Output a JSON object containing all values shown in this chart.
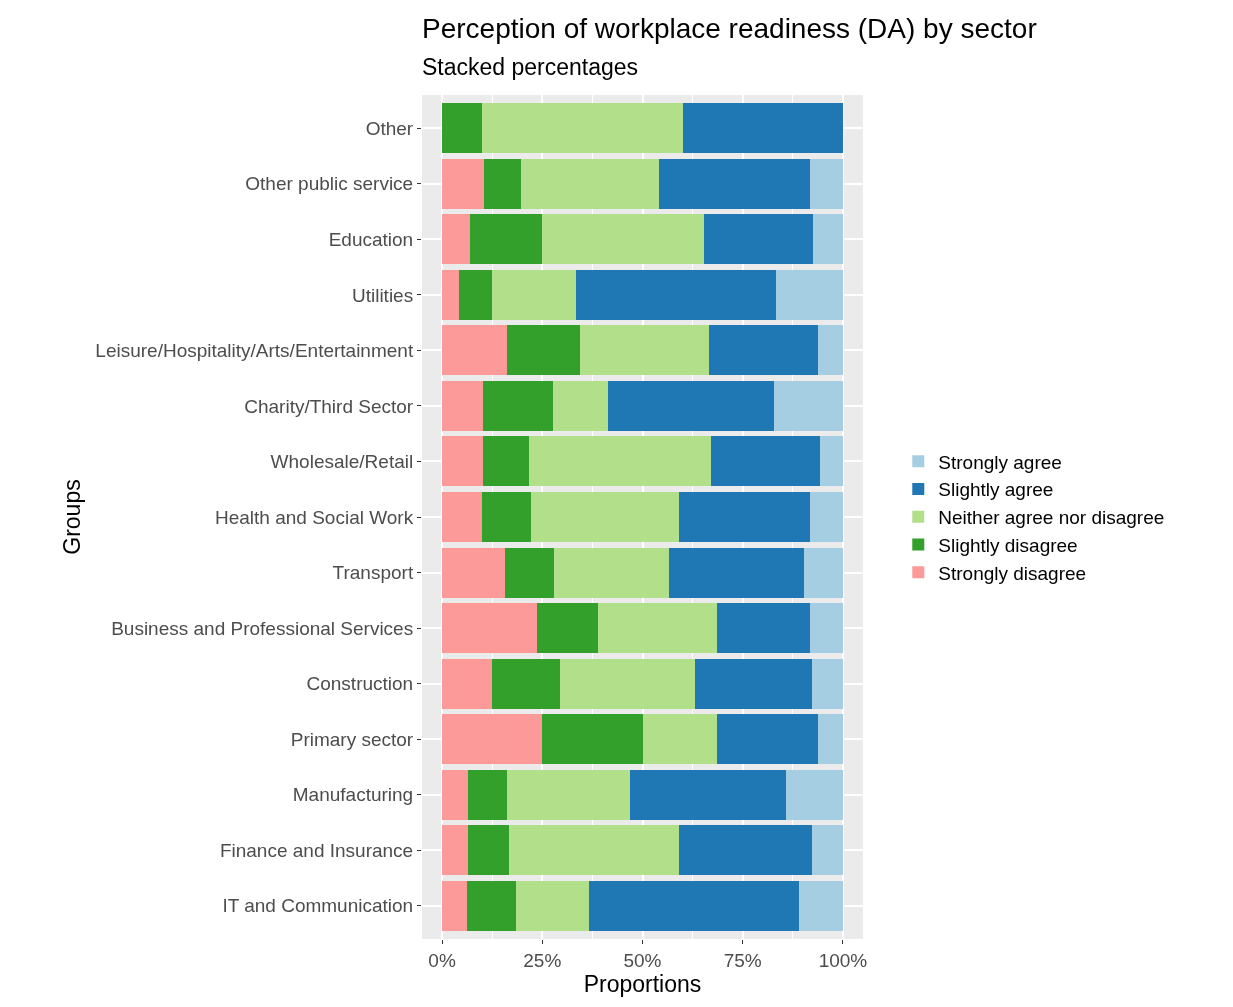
{
  "chart_data": {
    "type": "bar",
    "orientation": "horizontal",
    "stacked": true,
    "title": "Perception of workplace readiness (DA) by sector",
    "subtitle": "Stacked percentages",
    "xlabel": "Proportions",
    "ylabel": "Groups",
    "legend": "right",
    "grid": true,
    "categories": [
      "Other",
      "Other public service",
      "Education",
      "Utilities",
      "Leisure/Hospitality/Arts/Entertainment",
      "Charity/Third Sector",
      "Wholesale/Retail",
      "Health and Social Work",
      "Transport",
      "Business and Professional Services",
      "Construction",
      "Primary sector",
      "Manufacturing",
      "Finance and Insurance",
      "IT and Communication"
    ],
    "xlim": [
      -5,
      105
    ],
    "xticks": [
      {
        "value": 0,
        "label": "0%"
      },
      {
        "value": 25,
        "label": "25%"
      },
      {
        "value": 50,
        "label": "50%"
      },
      {
        "value": 75,
        "label": "75%"
      },
      {
        "value": 100,
        "label": "100%"
      }
    ],
    "series": [
      {
        "name": "Strongly disagree",
        "color": "#fb9a99",
        "values": [
          0,
          10.5,
          7.0,
          4.2,
          16.3,
          10.3,
          10.3,
          9.9,
          15.8,
          23.7,
          12.4,
          25.0,
          6.4,
          6.4,
          6.1
        ]
      },
      {
        "name": "Slightly disagree",
        "color": "#33a02c",
        "values": [
          10.0,
          9.3,
          17.9,
          8.3,
          18.1,
          17.4,
          11.3,
          12.2,
          12.1,
          15.3,
          17.0,
          25.0,
          9.9,
          10.4,
          12.3
        ]
      },
      {
        "name": "Neither agree nor disagree",
        "color": "#b2df8a",
        "values": [
          50.0,
          34.4,
          40.4,
          20.8,
          32.3,
          13.8,
          45.4,
          36.9,
          28.7,
          29.7,
          33.6,
          18.7,
          30.6,
          42.2,
          18.3
        ]
      },
      {
        "name": "Slightly agree",
        "color": "#1f78b4",
        "values": [
          40.0,
          37.5,
          27.3,
          50.0,
          27.0,
          41.4,
          27.2,
          32.9,
          33.7,
          23.2,
          29.4,
          25.0,
          38.8,
          33.4,
          52.4
        ]
      },
      {
        "name": "Strongly agree",
        "color": "#a6cee3",
        "values": [
          0,
          8.3,
          7.4,
          16.7,
          6.3,
          17.1,
          5.8,
          8.1,
          9.7,
          8.1,
          7.6,
          6.3,
          14.3,
          7.6,
          10.9
        ]
      }
    ]
  }
}
